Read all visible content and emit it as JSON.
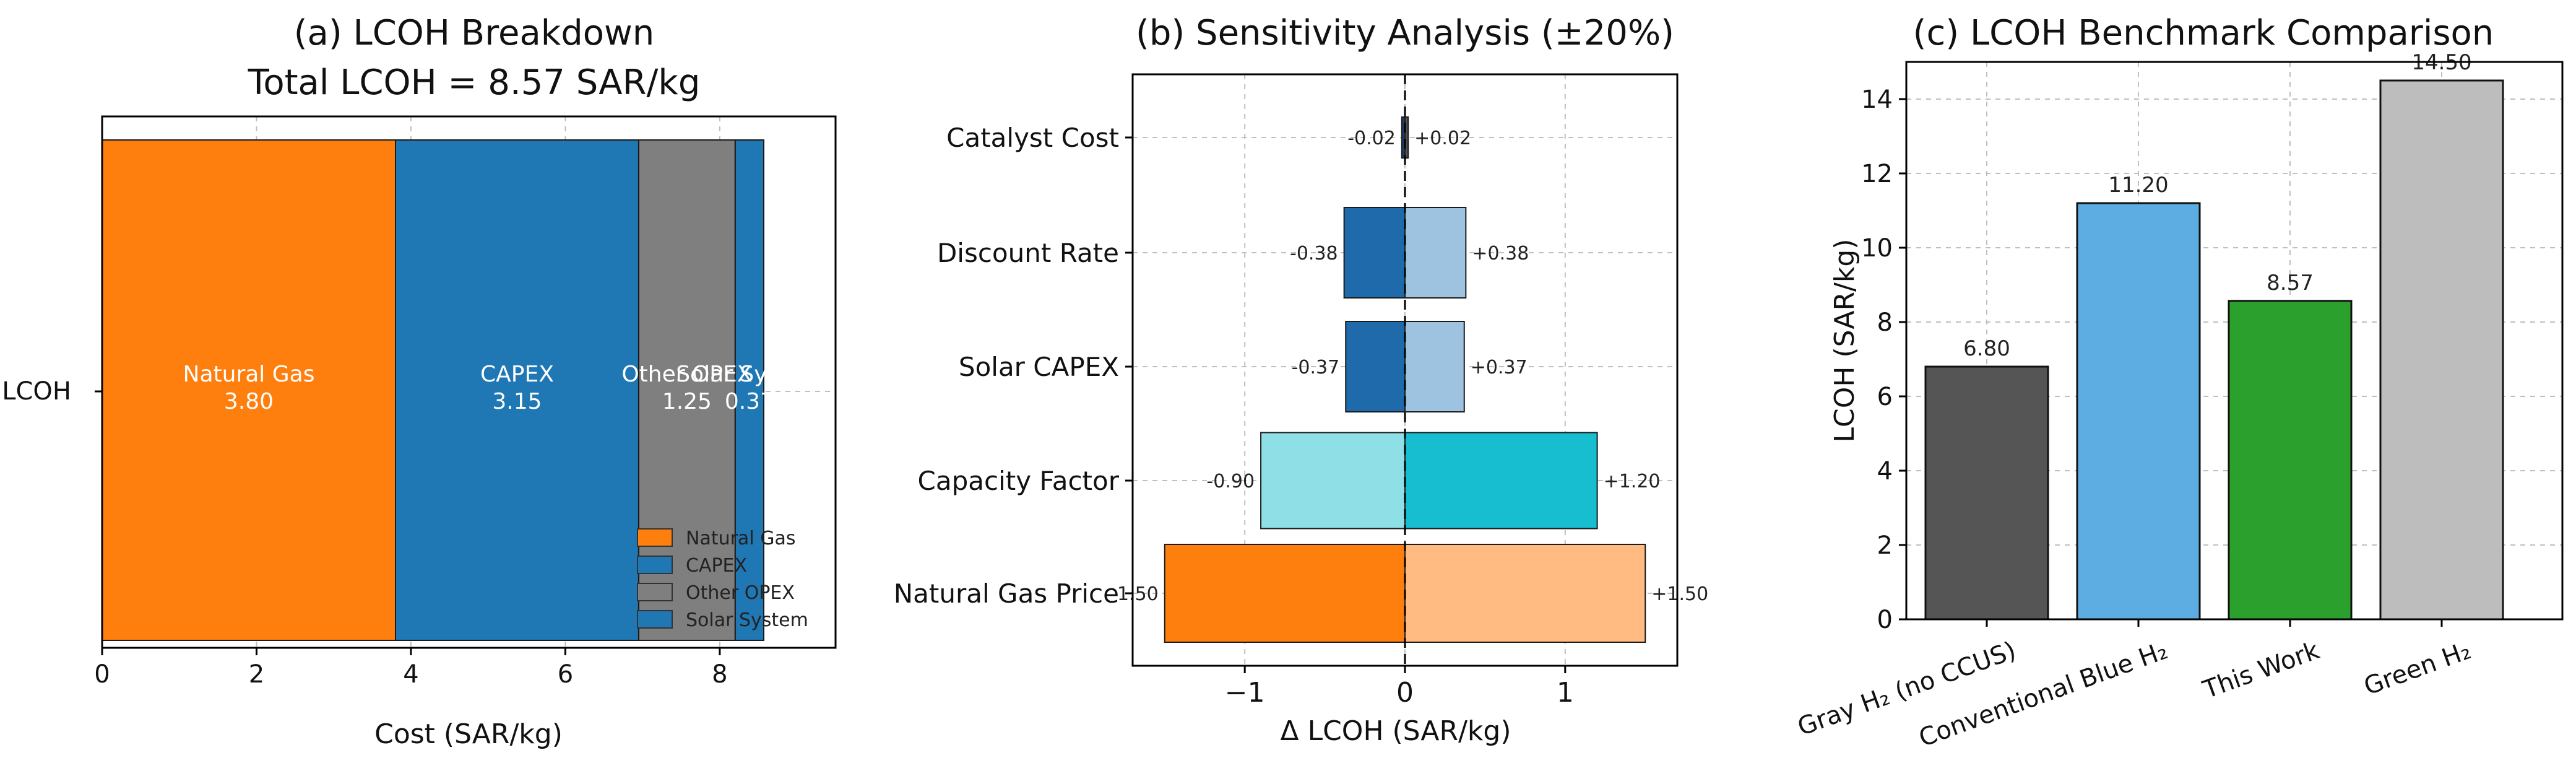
{
  "chart_data": [
    {
      "type": "bar",
      "orientation": "horizontal-stacked",
      "title": "(a) LCOH Breakdown",
      "subtitle": "Total LCOH = 8.57 SAR/kg",
      "xlabel": "Cost (SAR/kg)",
      "ylabel": "",
      "xlim": [
        0,
        9.5
      ],
      "xticks": [
        "0",
        "2",
        "4",
        "6",
        "8"
      ],
      "category": "LCOH",
      "grid": true,
      "legend_position": "lower-right",
      "segments": [
        {
          "name": "Natural Gas",
          "value": 3.8,
          "label": "3.80",
          "color": "#ff7f0e"
        },
        {
          "name": "CAPEX",
          "value": 3.15,
          "label": "3.15",
          "color": "#1f77b4"
        },
        {
          "name": "Other OPEX",
          "value": 1.25,
          "label": "1.25",
          "color": "#7f7f7f"
        },
        {
          "name": "Solar System",
          "value": 0.37,
          "label": "0.37",
          "color": "#1f77b4"
        }
      ]
    },
    {
      "type": "bar",
      "orientation": "horizontal-tornado",
      "title": "(b) Sensitivity Analysis (±20%)",
      "xlabel": "Δ LCOH (SAR/kg)",
      "xlim": [
        -1.7,
        1.7
      ],
      "xticks": [
        "−1",
        "0",
        "1"
      ],
      "grid": true,
      "parameters": [
        {
          "name": "Catalyst Cost",
          "low": -0.02,
          "high": 0.02,
          "low_label": "-0.02",
          "high_label": "+0.02",
          "low_color": "#1f3f6e",
          "high_color": "#555555"
        },
        {
          "name": "Discount Rate",
          "low": -0.38,
          "high": 0.38,
          "low_label": "-0.38",
          "high_label": "+0.38",
          "low_color": "#1f6aaa",
          "high_color": "#9ec3e0"
        },
        {
          "name": "Solar CAPEX",
          "low": -0.37,
          "high": 0.37,
          "low_label": "-0.37",
          "high_label": "+0.37",
          "low_color": "#1f6aaa",
          "high_color": "#9ec3e0"
        },
        {
          "name": "Capacity Factor",
          "low": -0.9,
          "high": 1.2,
          "low_label": "-0.90",
          "high_label": "+1.20",
          "low_color": "#8fe0e6",
          "high_color": "#17becf"
        },
        {
          "name": "Natural Gas Price",
          "low": -1.5,
          "high": 1.5,
          "low_label": "-1.50",
          "high_label": "+1.50",
          "low_color": "#ff7f0e",
          "high_color": "#ffbb82"
        }
      ]
    },
    {
      "type": "bar",
      "title": "(c) LCOH Benchmark Comparison",
      "xlabel": "",
      "ylabel": "LCOH (SAR/kg)",
      "ylim": [
        0,
        15
      ],
      "yticks": [
        "0",
        "2",
        "4",
        "6",
        "8",
        "10",
        "12",
        "14"
      ],
      "grid": true,
      "categories": [
        "Gray H₂ (no CCUS)",
        "Conventional Blue H₂",
        "This Work",
        "Green H₂"
      ],
      "values": [
        6.8,
        11.2,
        8.57,
        14.5
      ],
      "labels": [
        "6.80",
        "11.20",
        "8.57",
        "14.50"
      ],
      "colors": [
        "#555555",
        "#5dade2",
        "#2ca02c",
        "#bdbdbd"
      ]
    }
  ]
}
